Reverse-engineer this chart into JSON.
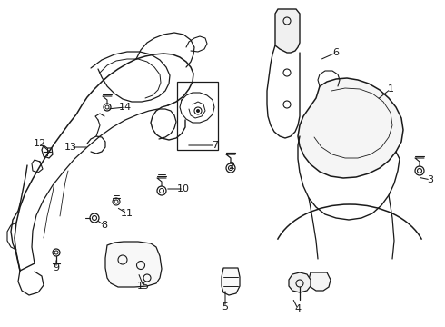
{
  "bg_color": "#ffffff",
  "line_color": "#1a1a1a",
  "label_color": "#1a1a1a",
  "figsize": [
    4.9,
    3.6
  ],
  "dpi": 100,
  "label_specs": [
    [
      "1",
      430,
      98,
      415,
      110,
      "left"
    ],
    [
      "2",
      255,
      183,
      255,
      183,
      "center"
    ],
    [
      "3",
      474,
      198,
      460,
      195,
      "left"
    ],
    [
      "4",
      328,
      340,
      322,
      328,
      "center"
    ],
    [
      "5",
      248,
      338,
      248,
      318,
      "center"
    ],
    [
      "6",
      370,
      58,
      352,
      66,
      "left"
    ],
    [
      "7",
      237,
      160,
      205,
      160,
      "left"
    ],
    [
      "8",
      115,
      248,
      106,
      242,
      "left"
    ],
    [
      "9",
      62,
      295,
      62,
      284,
      "center"
    ],
    [
      "10",
      202,
      208,
      182,
      208,
      "left"
    ],
    [
      "11",
      140,
      235,
      128,
      228,
      "left"
    ],
    [
      "12",
      44,
      158,
      56,
      168,
      "left"
    ],
    [
      "13",
      78,
      162,
      98,
      162,
      "left"
    ],
    [
      "14",
      138,
      118,
      118,
      120,
      "left"
    ],
    [
      "15",
      158,
      315,
      152,
      300,
      "center"
    ]
  ]
}
